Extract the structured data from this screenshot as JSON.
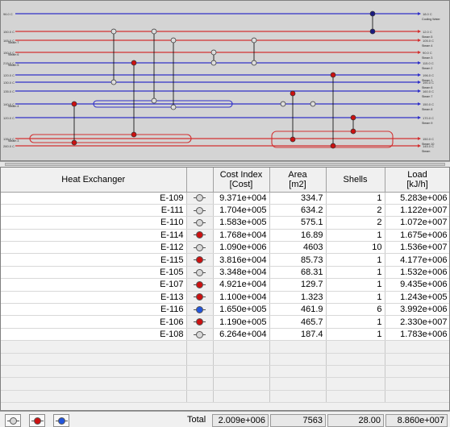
{
  "diagram": {
    "left_labels": [
      "96.0 C",
      "150.0 C",
      "165.0 C",
      "150.0 C",
      "215.0 C",
      "120.0 C",
      "130.0 C",
      "135.0 C",
      "140.0 C",
      "120.0 C",
      "135.0 C",
      "260.0 C"
    ],
    "right_labels": [
      "18.0 C",
      "12.0 C",
      "105.0 C",
      "90.0 C",
      "115.0 C",
      "196.0 C",
      "190.0 C",
      "160.0 C",
      "150.0 C",
      "170.0 C",
      "150.0 C",
      "145.0 C"
    ],
    "stream_names": [
      "Cooling Water",
      "Steam 5",
      "Steam 4",
      "Steam 3",
      "Steam 2",
      "Steam 1",
      "Steam 6",
      "Steam 7",
      "Steam 8",
      "Steam 9",
      "Steam 10",
      "Steam"
    ],
    "left_names": [
      "Steam 7",
      "Steam 6",
      "Steam 5",
      "Steam 4",
      "Steam 3",
      "Steam 2",
      "Steam 1",
      "Steam"
    ]
  },
  "table": {
    "headers": {
      "name": "Heat Exchanger",
      "cost": [
        "Cost Index",
        "[Cost]"
      ],
      "area": [
        "Area",
        "[m2]"
      ],
      "shells": "Shells",
      "load": [
        "Load",
        "[kJ/h]"
      ]
    },
    "rows": [
      {
        "name": "E-109",
        "icon": "grey-exchanger-icon",
        "color": "#d8d8d8",
        "cost": "9.371e+004",
        "area": "334.7",
        "shells": "1",
        "load": "5.283e+006"
      },
      {
        "name": "E-111",
        "icon": "grey-exchanger-icon",
        "color": "#d8d8d8",
        "cost": "1.704e+005",
        "area": "634.2",
        "shells": "2",
        "load": "1.122e+007"
      },
      {
        "name": "E-110",
        "icon": "grey-exchanger-icon",
        "color": "#d8d8d8",
        "cost": "1.583e+005",
        "area": "575.1",
        "shells": "2",
        "load": "1.072e+007"
      },
      {
        "name": "E-114",
        "icon": "red-exchanger-icon",
        "color": "#cc1111",
        "cost": "1.768e+004",
        "area": "16.89",
        "shells": "1",
        "load": "1.675e+006"
      },
      {
        "name": "E-112",
        "icon": "grey-exchanger-icon",
        "color": "#d8d8d8",
        "cost": "1.090e+006",
        "area": "4603",
        "shells": "10",
        "load": "1.536e+007"
      },
      {
        "name": "E-115",
        "icon": "red-exchanger-icon",
        "color": "#cc1111",
        "cost": "3.816e+004",
        "area": "85.73",
        "shells": "1",
        "load": "4.177e+006"
      },
      {
        "name": "E-105",
        "icon": "grey-exchanger-icon",
        "color": "#d8d8d8",
        "cost": "3.348e+004",
        "area": "68.31",
        "shells": "1",
        "load": "1.532e+006"
      },
      {
        "name": "E-107",
        "icon": "red-exchanger-icon",
        "color": "#cc1111",
        "cost": "4.921e+004",
        "area": "129.7",
        "shells": "1",
        "load": "9.435e+006"
      },
      {
        "name": "E-113",
        "icon": "red-exchanger-icon",
        "color": "#cc1111",
        "cost": "1.100e+004",
        "area": "1.323",
        "shells": "1",
        "load": "1.243e+005"
      },
      {
        "name": "E-116",
        "icon": "blue-exchanger-icon",
        "color": "#2255dd",
        "cost": "1.650e+005",
        "area": "461.9",
        "shells": "6",
        "load": "3.992e+006"
      },
      {
        "name": "E-106",
        "icon": "red-exchanger-icon",
        "color": "#cc1111",
        "cost": "1.190e+005",
        "area": "465.7",
        "shells": "1",
        "load": "2.330e+007"
      },
      {
        "name": "E-108",
        "icon": "grey-exchanger-icon",
        "color": "#d8d8d8",
        "cost": "6.264e+004",
        "area": "187.4",
        "shells": "1",
        "load": "1.783e+006"
      }
    ]
  },
  "footer": {
    "total_label": "Total",
    "cost": "2.009e+006",
    "area": "7563",
    "shells": "28.00",
    "load": "8.860e+007",
    "filters": [
      {
        "icon": "grey-filter-icon",
        "color": "#d8d8d8"
      },
      {
        "icon": "red-filter-icon",
        "color": "#cc1111"
      },
      {
        "icon": "blue-filter-icon",
        "color": "#2255dd"
      }
    ]
  },
  "colors": {
    "hot_stream": "#d23030",
    "cold_stream": "#3030c8"
  }
}
